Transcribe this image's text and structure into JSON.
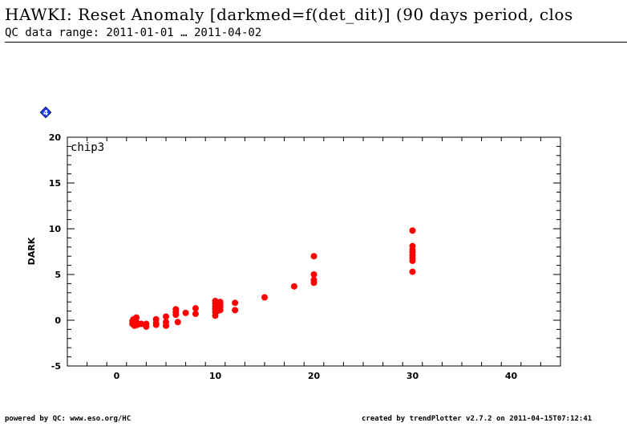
{
  "header": {
    "title": "HAWKI: Reset Anomaly [darkmed=f(det_dit)] (90 days period, clos",
    "subtitle": "QC data range: 2011-01-01 … 2011-04-02"
  },
  "badge": {
    "text": "4",
    "color": "#1a3dff"
  },
  "footer": {
    "left": "powered by QC: www.eso.org/HC",
    "right": "created by trendPlotter v2.7.2 on 2011-04-15T07:12:41"
  },
  "chart_data": {
    "type": "scatter",
    "panel_label": "chip3",
    "xlabel": "",
    "ylabel": "DARK",
    "xlim": [
      -5,
      45
    ],
    "ylim": [
      -5,
      20
    ],
    "x_ticks": [
      0,
      10,
      20,
      30,
      40
    ],
    "y_ticks": [
      -5,
      0,
      5,
      10,
      15,
      20
    ],
    "grid": false,
    "marker_color": "#ff0000",
    "series": [
      {
        "points": [
          [
            1.6,
            -0.1
          ],
          [
            1.6,
            -0.4
          ],
          [
            1.7,
            0.1
          ],
          [
            1.8,
            -0.6
          ],
          [
            1.9,
            -0.3
          ],
          [
            2.0,
            0.3
          ],
          [
            2.0,
            -0.2
          ],
          [
            2.1,
            -0.5
          ],
          [
            2.5,
            -0.4
          ],
          [
            3.0,
            -0.7
          ],
          [
            3.0,
            -0.4
          ],
          [
            4.0,
            0.1
          ],
          [
            4.0,
            -0.3
          ],
          [
            4.0,
            -0.5
          ],
          [
            5.0,
            0.4
          ],
          [
            5.0,
            -0.2
          ],
          [
            5.0,
            -0.6
          ],
          [
            6.0,
            1.2
          ],
          [
            6.0,
            0.9
          ],
          [
            6.0,
            0.6
          ],
          [
            6.2,
            -0.2
          ],
          [
            7.0,
            0.8
          ],
          [
            8.0,
            1.3
          ],
          [
            8.0,
            0.7
          ],
          [
            10.0,
            2.1
          ],
          [
            10.0,
            1.8
          ],
          [
            10.0,
            1.5
          ],
          [
            10.0,
            1.2
          ],
          [
            10.0,
            0.9
          ],
          [
            10.0,
            0.5
          ],
          [
            10.2,
            1.0
          ],
          [
            10.5,
            2.0
          ],
          [
            10.5,
            1.4
          ],
          [
            10.5,
            1.1
          ],
          [
            10.5,
            1.7
          ],
          [
            12.0,
            1.9
          ],
          [
            12.0,
            1.1
          ],
          [
            15.0,
            2.5
          ],
          [
            18.0,
            3.7
          ],
          [
            20.0,
            7.0
          ],
          [
            20.0,
            5.0
          ],
          [
            20.0,
            4.4
          ],
          [
            20.0,
            4.1
          ],
          [
            30.0,
            9.8
          ],
          [
            30.0,
            8.1
          ],
          [
            30.0,
            7.7
          ],
          [
            30.0,
            7.4
          ],
          [
            30.0,
            7.1
          ],
          [
            30.0,
            6.8
          ],
          [
            30.0,
            6.5
          ],
          [
            30.0,
            5.3
          ]
        ]
      }
    ]
  }
}
